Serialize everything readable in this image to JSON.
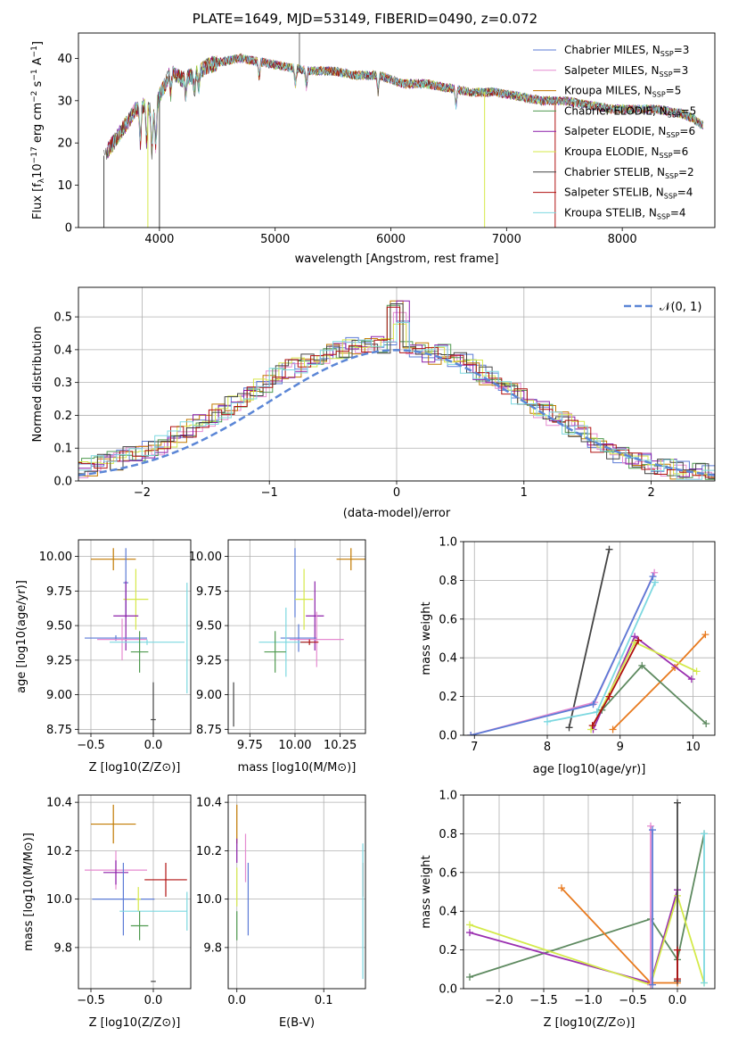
{
  "title": "PLATE=1649, MJD=53149, FIBERID=0490, z=0.072",
  "colors": {
    "chabrier_miles": "#5b7bd6",
    "salpeter_miles": "#e58ad0",
    "kroupa_miles": "#c27a00",
    "chabrier_elodie": "#4f9a4f",
    "salpeter_elodie": "#8b1fa9",
    "kroupa_elodie": "#d6e84a",
    "chabrier_stelib": "#444444",
    "salpeter_stelib": "#b01010",
    "kroupa_stelib": "#7dd8e0",
    "ab_kroupa_miles": "#e87a1e",
    "ab_chabrier_elodie": "#5e8a60",
    "ab_salpeter_elodie": "#9a2fb0",
    "ab_kroupa_elodie": "#d4ea4a",
    "normal_curve": "#5b86d6"
  },
  "legend": [
    {
      "key": "chabrier_miles",
      "label": "Chabrier MILES, N",
      "n": "=3"
    },
    {
      "key": "salpeter_miles",
      "label": "Salpeter MILES, N",
      "n": "=3"
    },
    {
      "key": "kroupa_miles",
      "label": "Kroupa MILES, N",
      "n": "=5"
    },
    {
      "key": "chabrier_elodie",
      "label": "Chabrier ELODIE, N",
      "n": "=5"
    },
    {
      "key": "salpeter_elodie",
      "label": "Salpeter ELODIE, N",
      "n": "=6"
    },
    {
      "key": "kroupa_elodie",
      "label": "Kroupa ELODIE, N",
      "n": "=6"
    },
    {
      "key": "chabrier_stelib",
      "label": "Chabrier STELIB, N",
      "n": "=2"
    },
    {
      "key": "salpeter_stelib",
      "label": "Salpeter STELIB, N",
      "n": "=4"
    },
    {
      "key": "kroupa_stelib",
      "label": "Kroupa STELIB, N",
      "n": "=4"
    }
  ],
  "legend_subscript": "SSP",
  "chart_data": [
    {
      "id": "spectrum",
      "type": "line",
      "xlabel": "wavelength [Angstrom, rest frame]",
      "ylabel": "Flux [f_λ 10^-17 erg cm^-2 s^-1 A^-1]",
      "xlim": [
        3300,
        8800
      ],
      "ylim": [
        0,
        46
      ],
      "xticks": [
        4000,
        5000,
        6000,
        7000,
        8000
      ],
      "yticks": [
        0,
        10,
        20,
        30,
        40
      ],
      "legend_position": "upper right",
      "continuum": {
        "wavelength": [
          3520,
          3600,
          3700,
          3800,
          3900,
          3950,
          4000,
          4050,
          4100,
          4200,
          4300,
          4400,
          4500,
          4700,
          4900,
          5100,
          5300,
          5500,
          5700,
          5900,
          6100,
          6300,
          6500,
          6700,
          6900,
          7100,
          7300,
          7500,
          7700,
          7900,
          8100,
          8300,
          8500,
          8600,
          8700
        ],
        "flux": [
          17,
          20,
          24,
          28,
          29,
          26,
          31,
          34,
          37,
          35,
          36,
          38,
          39,
          40,
          39,
          38,
          37,
          37,
          36,
          36,
          34,
          34,
          33,
          32,
          32,
          31,
          30,
          30,
          29,
          28,
          28,
          28,
          27,
          26,
          24
        ]
      }
    },
    {
      "id": "residuals",
      "type": "line",
      "xlabel": "(data-model)/error",
      "ylabel": "Normed distribution",
      "xlim": [
        -2.5,
        2.5
      ],
      "ylim": [
        0,
        0.59
      ],
      "xticks": [
        -2,
        -1,
        0,
        1,
        2
      ],
      "yticks": [
        0.0,
        0.1,
        0.2,
        0.3,
        0.4,
        0.5
      ],
      "grid": true,
      "legend": "𝒩(0, 1)",
      "legend_position": "upper right"
    },
    {
      "id": "age_vs_Z",
      "type": "scatter",
      "xlabel": "Z [log10(Z/Z⊙)]",
      "ylabel": "age  [log10(age/yr)]",
      "xlim": [
        -0.6,
        0.3
      ],
      "ylim": [
        8.72,
        10.12
      ],
      "xticks": [
        -0.5,
        0.0
      ],
      "yticks": [
        8.75,
        9.0,
        9.25,
        9.5,
        9.75,
        10.0
      ],
      "grid": true,
      "points": [
        {
          "key": "kroupa_miles",
          "x": -0.32,
          "y": 9.98,
          "xerr": 0.18,
          "yerr": 0.08
        },
        {
          "key": "chabrier_miles",
          "x": -0.22,
          "y": 9.81,
          "xerr": 0.02,
          "yerr": 0.25
        },
        {
          "key": "kroupa_elodie",
          "x": -0.14,
          "y": 9.69,
          "xerr": 0.1,
          "yerr": 0.22
        },
        {
          "key": "salpeter_elodie",
          "x": -0.22,
          "y": 9.57,
          "xerr": 0.1,
          "yerr": 0.25
        },
        {
          "key": "chabrier_miles",
          "x": -0.3,
          "y": 9.41,
          "xerr": 0.25,
          "yerr": 0.02
        },
        {
          "key": "salpeter_miles",
          "x": -0.25,
          "y": 9.4,
          "xerr": 0.2,
          "yerr": 0.15
        },
        {
          "key": "kroupa_stelib",
          "x": -0.05,
          "y": 9.38,
          "xerr": 0.3,
          "yerr": 0.02
        },
        {
          "key": "kroupa_stelib",
          "x": 0.27,
          "y": 9.41,
          "xerr": 0.0,
          "yerr": 0.4
        },
        {
          "key": "chabrier_elodie",
          "x": -0.11,
          "y": 9.31,
          "xerr": 0.07,
          "yerr": 0.15
        },
        {
          "key": "chabrier_stelib",
          "x": 0.0,
          "y": 8.82,
          "xerr": 0.02,
          "yerr": 0.27
        }
      ]
    },
    {
      "id": "age_vs_mass",
      "type": "scatter",
      "xlabel": "mass [log10(M/M⊙)]",
      "ylabel": "",
      "xlim": [
        9.63,
        10.39
      ],
      "ylim": [
        8.72,
        10.12
      ],
      "xticks": [
        9.75,
        10.0,
        10.25
      ],
      "xticklabels": [
        "9.75",
        "10.00",
        "10.25"
      ],
      "yticks": [
        8.75,
        9.0,
        9.25,
        9.5,
        9.75,
        10.0
      ],
      "grid": true,
      "points": [
        {
          "key": "kroupa_miles",
          "x": 10.31,
          "y": 9.98,
          "xerr": 0.08,
          "yerr": 0.08
        },
        {
          "key": "chabrier_miles",
          "x": 10.0,
          "y": 9.81,
          "xerr": 0.0,
          "yerr": 0.25
        },
        {
          "key": "kroupa_elodie",
          "x": 10.05,
          "y": 9.69,
          "xerr": 0.05,
          "yerr": 0.22
        },
        {
          "key": "salpeter_elodie",
          "x": 10.11,
          "y": 9.57,
          "xerr": 0.05,
          "yerr": 0.25
        },
        {
          "key": "chabrier_miles",
          "x": 10.02,
          "y": 9.41,
          "xerr": 0.1,
          "yerr": 0.1
        },
        {
          "key": "salpeter_miles",
          "x": 10.12,
          "y": 9.4,
          "xerr": 0.15,
          "yerr": 0.2
        },
        {
          "key": "kroupa_stelib",
          "x": 9.95,
          "y": 9.38,
          "xerr": 0.15,
          "yerr": 0.25
        },
        {
          "key": "salpeter_stelib",
          "x": 10.08,
          "y": 9.38,
          "xerr": 0.05,
          "yerr": 0.02
        },
        {
          "key": "chabrier_elodie",
          "x": 9.89,
          "y": 9.31,
          "xerr": 0.06,
          "yerr": 0.15
        },
        {
          "key": "chabrier_stelib",
          "x": 9.66,
          "y": 8.93,
          "xerr": 0.0,
          "yerr": 0.16
        }
      ]
    },
    {
      "id": "mass_weight_vs_age",
      "type": "line",
      "xlabel": "age  [log10(age/yr)]",
      "ylabel": "mass weight",
      "xlim": [
        6.85,
        10.3
      ],
      "ylim": [
        0.0,
        1.0
      ],
      "xticks": [
        7,
        8,
        9,
        10
      ],
      "yticks": [
        0.0,
        0.2,
        0.4,
        0.6,
        0.8,
        1.0
      ],
      "grid": true,
      "series": [
        {
          "key": "chabrier_stelib",
          "x": [
            8.3,
            8.85
          ],
          "y": [
            0.04,
            0.96
          ]
        },
        {
          "key": "salpeter_miles",
          "x": [
            6.95,
            8.65,
            9.47
          ],
          "y": [
            0.0,
            0.17,
            0.84
          ]
        },
        {
          "key": "chabrier_miles",
          "x": [
            6.95,
            8.63,
            9.45
          ],
          "y": [
            0.0,
            0.16,
            0.82
          ]
        },
        {
          "key": "kroupa_stelib",
          "x": [
            8.0,
            8.68,
            9.48
          ],
          "y": [
            0.07,
            0.12,
            0.79
          ]
        },
        {
          "key": "ab_kroupa_miles",
          "x": [
            8.9,
            9.75,
            10.17
          ],
          "y": [
            0.03,
            0.35,
            0.52
          ]
        },
        {
          "key": "ab_salpeter_elodie",
          "x": [
            8.63,
            9.2,
            9.98
          ],
          "y": [
            0.03,
            0.51,
            0.29
          ]
        },
        {
          "key": "ab_kroupa_elodie",
          "x": [
            8.6,
            9.2,
            10.05
          ],
          "y": [
            0.03,
            0.48,
            0.33
          ]
        },
        {
          "key": "ab_chabrier_elodie",
          "x": [
            8.75,
            9.3,
            10.18
          ],
          "y": [
            0.13,
            0.36,
            0.06
          ]
        },
        {
          "key": "salpeter_stelib",
          "x": [
            8.62,
            8.85,
            9.25
          ],
          "y": [
            0.05,
            0.2,
            0.49
          ]
        }
      ]
    },
    {
      "id": "mass_vs_Z",
      "type": "scatter",
      "xlabel": "Z [log10(Z/Z⊙)]",
      "ylabel": "mass [log10(M/M⊙)]",
      "xlim": [
        -0.6,
        0.3
      ],
      "ylim": [
        9.63,
        10.43
      ],
      "xticks": [
        -0.5,
        0.0
      ],
      "yticks": [
        9.8,
        10.0,
        10.2,
        10.4
      ],
      "grid": true,
      "points": [
        {
          "key": "kroupa_miles",
          "x": -0.32,
          "y": 10.31,
          "xerr": 0.18,
          "yerr": 0.08
        },
        {
          "key": "salpeter_miles",
          "x": -0.3,
          "y": 10.12,
          "xerr": 0.25,
          "yerr": 0.08
        },
        {
          "key": "salpeter_elodie",
          "x": -0.3,
          "y": 10.11,
          "xerr": 0.1,
          "yerr": 0.05
        },
        {
          "key": "chabrier_miles",
          "x": -0.24,
          "y": 10.0,
          "xerr": 0.25,
          "yerr": 0.15
        },
        {
          "key": "kroupa_elodie",
          "x": -0.12,
          "y": 10.0,
          "xerr": 0.02,
          "yerr": 0.05
        },
        {
          "key": "salpeter_stelib",
          "x": 0.1,
          "y": 10.08,
          "xerr": 0.17,
          "yerr": 0.07
        },
        {
          "key": "kroupa_stelib",
          "x": 0.0,
          "y": 9.95,
          "xerr": 0.27,
          "yerr": 0.0
        },
        {
          "key": "kroupa_stelib",
          "x": 0.27,
          "y": 9.95,
          "xerr": 0.0,
          "yerr": 0.08
        },
        {
          "key": "chabrier_elodie",
          "x": -0.11,
          "y": 9.89,
          "xerr": 0.07,
          "yerr": 0.06
        },
        {
          "key": "chabrier_stelib",
          "x": 0.0,
          "y": 9.66,
          "xerr": 0.02,
          "yerr": 0.0
        }
      ]
    },
    {
      "id": "mass_vs_ebv",
      "type": "scatter",
      "xlabel": "E(B-V)",
      "ylabel": "",
      "xlim": [
        -0.01,
        0.148
      ],
      "ylim": [
        9.63,
        10.43
      ],
      "xticks": [
        0.0,
        0.1
      ],
      "yticks": [
        9.8,
        10.0,
        10.2,
        10.4
      ],
      "grid": true,
      "points": [
        {
          "key": "kroupa_miles",
          "x": 0.0,
          "y": 10.31,
          "xerr": 0,
          "yerr": 0.08
        },
        {
          "key": "salpeter_elodie",
          "x": 0.0,
          "y": 10.2,
          "xerr": 0,
          "yerr": 0.05
        },
        {
          "key": "kroupa_elodie",
          "x": 0.0,
          "y": 10.05,
          "xerr": 0,
          "yerr": 0.08
        },
        {
          "key": "chabrier_elodie",
          "x": 0.0,
          "y": 9.89,
          "xerr": 0,
          "yerr": 0.06
        },
        {
          "key": "salpeter_miles",
          "x": 0.01,
          "y": 10.17,
          "xerr": 0,
          "yerr": 0.1
        },
        {
          "key": "chabrier_miles",
          "x": 0.013,
          "y": 10.0,
          "xerr": 0,
          "yerr": 0.15
        },
        {
          "key": "salpeter_stelib",
          "x": 0.145,
          "y": 10.08,
          "xerr": 0,
          "yerr": 0.07
        },
        {
          "key": "kroupa_stelib",
          "x": 0.145,
          "y": 9.95,
          "xerr": 0,
          "yerr": 0.28
        }
      ]
    },
    {
      "id": "mass_weight_vs_Z",
      "type": "line",
      "xlabel": "Z [log10(Z/Z⊙)]",
      "ylabel": "mass weight",
      "xlim": [
        -2.4,
        0.42
      ],
      "ylim": [
        0.0,
        1.0
      ],
      "xticks": [
        -2.0,
        -1.5,
        -1.0,
        -0.5,
        0.0
      ],
      "yticks": [
        0.0,
        0.2,
        0.4,
        0.6,
        0.8,
        1.0
      ],
      "grid": true,
      "series": [
        {
          "key": "ab_chabrier_elodie",
          "x": [
            -2.33,
            -0.3,
            0.0,
            0.3
          ],
          "y": [
            0.06,
            0.36,
            0.15,
            0.8
          ]
        },
        {
          "key": "ab_salpeter_elodie",
          "x": [
            -2.33,
            -0.3,
            0.0
          ],
          "y": [
            0.29,
            0.03,
            0.51
          ]
        },
        {
          "key": "ab_kroupa_elodie",
          "x": [
            -2.33,
            -0.3,
            0.0,
            0.3
          ],
          "y": [
            0.33,
            0.02,
            0.48,
            0.03
          ]
        },
        {
          "key": "ab_kroupa_miles",
          "x": [
            -1.3,
            -0.3,
            0.0
          ],
          "y": [
            0.52,
            0.03,
            0.03
          ]
        },
        {
          "key": "salpeter_miles",
          "x": [
            -0.3,
            -0.3
          ],
          "y": [
            0.84,
            0.02
          ]
        },
        {
          "key": "chabrier_miles",
          "x": [
            -0.28,
            -0.28
          ],
          "y": [
            0.82,
            0.02
          ]
        },
        {
          "key": "chabrier_stelib",
          "x": [
            0.0,
            0.0
          ],
          "y": [
            0.96,
            0.04
          ]
        },
        {
          "key": "kroupa_stelib",
          "x": [
            0.3,
            0.3
          ],
          "y": [
            0.8,
            0.03
          ]
        },
        {
          "key": "salpeter_stelib",
          "x": [
            0.0,
            0.0
          ],
          "y": [
            0.2,
            0.05
          ]
        }
      ]
    }
  ]
}
